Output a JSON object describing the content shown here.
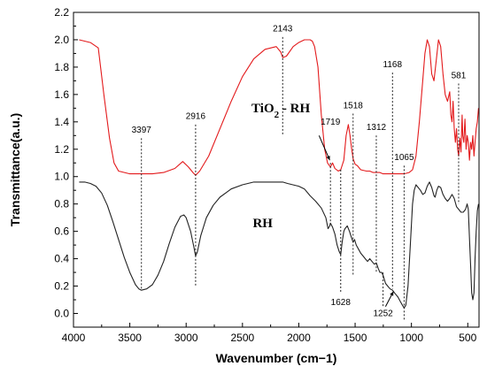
{
  "chart_data": {
    "type": "line",
    "xlabel": "Wavenumber",
    "xlabel_unit": "(cm−1)",
    "ylabel": "Transmittance(a.u.)",
    "xlim": [
      4000,
      400
    ],
    "ylim": [
      -0.1,
      2.2
    ],
    "x_ticks": [
      4000,
      3500,
      3000,
      2500,
      2000,
      1500,
      1000,
      500
    ],
    "y_ticks": [
      0.0,
      0.2,
      0.4,
      0.6,
      0.8,
      1.0,
      1.2,
      1.4,
      1.6,
      1.8,
      2.0,
      2.2
    ],
    "grid": false,
    "series": [
      {
        "name": "TiO2 - RH",
        "color": "#e31a1c",
        "points": [
          [
            3950,
            2.0
          ],
          [
            3850,
            1.98
          ],
          [
            3780,
            1.94
          ],
          [
            3730,
            1.6
          ],
          [
            3680,
            1.28
          ],
          [
            3640,
            1.1
          ],
          [
            3600,
            1.04
          ],
          [
            3500,
            1.02
          ],
          [
            3400,
            1.02
          ],
          [
            3300,
            1.02
          ],
          [
            3200,
            1.03
          ],
          [
            3100,
            1.06
          ],
          [
            3030,
            1.11
          ],
          [
            2980,
            1.07
          ],
          [
            2940,
            1.03
          ],
          [
            2916,
            1.01
          ],
          [
            2880,
            1.04
          ],
          [
            2800,
            1.15
          ],
          [
            2700,
            1.35
          ],
          [
            2600,
            1.55
          ],
          [
            2500,
            1.73
          ],
          [
            2400,
            1.86
          ],
          [
            2300,
            1.93
          ],
          [
            2200,
            1.95
          ],
          [
            2160,
            1.91
          ],
          [
            2143,
            1.87
          ],
          [
            2110,
            1.88
          ],
          [
            2050,
            1.95
          ],
          [
            2000,
            1.98
          ],
          [
            1950,
            2.0
          ],
          [
            1900,
            2.0
          ],
          [
            1880,
            1.99
          ],
          [
            1860,
            1.95
          ],
          [
            1830,
            1.8
          ],
          [
            1800,
            1.45
          ],
          [
            1770,
            1.2
          ],
          [
            1745,
            1.1
          ],
          [
            1719,
            1.07
          ],
          [
            1700,
            1.1
          ],
          [
            1680,
            1.06
          ],
          [
            1650,
            1.04
          ],
          [
            1628,
            1.05
          ],
          [
            1600,
            1.12
          ],
          [
            1580,
            1.3
          ],
          [
            1560,
            1.38
          ],
          [
            1545,
            1.3
          ],
          [
            1530,
            1.2
          ],
          [
            1518,
            1.13
          ],
          [
            1500,
            1.09
          ],
          [
            1480,
            1.08
          ],
          [
            1450,
            1.05
          ],
          [
            1400,
            1.04
          ],
          [
            1370,
            1.04
          ],
          [
            1340,
            1.03
          ],
          [
            1312,
            1.03
          ],
          [
            1280,
            1.03
          ],
          [
            1252,
            1.02
          ],
          [
            1200,
            1.02
          ],
          [
            1168,
            1.02
          ],
          [
            1120,
            1.02
          ],
          [
            1065,
            1.02
          ],
          [
            1020,
            1.03
          ],
          [
            990,
            1.05
          ],
          [
            960,
            1.15
          ],
          [
            930,
            1.4
          ],
          [
            900,
            1.7
          ],
          [
            880,
            1.9
          ],
          [
            860,
            2.0
          ],
          [
            840,
            1.95
          ],
          [
            820,
            1.75
          ],
          [
            800,
            1.7
          ],
          [
            780,
            1.85
          ],
          [
            760,
            2.0
          ],
          [
            740,
            1.95
          ],
          [
            720,
            1.75
          ],
          [
            700,
            1.6
          ],
          [
            680,
            1.55
          ],
          [
            660,
            1.62
          ],
          [
            650,
            1.45
          ],
          [
            640,
            1.4
          ],
          [
            630,
            1.55
          ],
          [
            620,
            1.35
          ],
          [
            610,
            1.25
          ],
          [
            600,
            1.35
          ],
          [
            590,
            1.2
          ],
          [
            581,
            1.15
          ],
          [
            570,
            1.28
          ],
          [
            560,
            1.18
          ],
          [
            550,
            1.45
          ],
          [
            545,
            1.3
          ],
          [
            535,
            1.25
          ],
          [
            525,
            1.42
          ],
          [
            515,
            1.2
          ],
          [
            505,
            1.3
          ],
          [
            495,
            1.25
          ],
          [
            485,
            1.12
          ],
          [
            475,
            1.25
          ],
          [
            465,
            1.2
          ],
          [
            455,
            1.3
          ],
          [
            445,
            1.15
          ],
          [
            435,
            1.25
          ],
          [
            425,
            1.35
          ],
          [
            415,
            1.4
          ],
          [
            405,
            1.5
          ]
        ]
      },
      {
        "name": "RH",
        "color": "#222222",
        "points": [
          [
            3950,
            0.96
          ],
          [
            3900,
            0.96
          ],
          [
            3850,
            0.95
          ],
          [
            3800,
            0.93
          ],
          [
            3750,
            0.88
          ],
          [
            3700,
            0.79
          ],
          [
            3650,
            0.67
          ],
          [
            3600,
            0.54
          ],
          [
            3550,
            0.41
          ],
          [
            3500,
            0.3
          ],
          [
            3450,
            0.21
          ],
          [
            3420,
            0.18
          ],
          [
            3397,
            0.17
          ],
          [
            3350,
            0.18
          ],
          [
            3300,
            0.21
          ],
          [
            3250,
            0.28
          ],
          [
            3200,
            0.38
          ],
          [
            3150,
            0.51
          ],
          [
            3100,
            0.63
          ],
          [
            3050,
            0.71
          ],
          [
            3020,
            0.72
          ],
          [
            3000,
            0.7
          ],
          [
            2960,
            0.6
          ],
          [
            2930,
            0.48
          ],
          [
            2916,
            0.42
          ],
          [
            2900,
            0.45
          ],
          [
            2870,
            0.57
          ],
          [
            2820,
            0.7
          ],
          [
            2760,
            0.79
          ],
          [
            2700,
            0.85
          ],
          [
            2600,
            0.91
          ],
          [
            2500,
            0.94
          ],
          [
            2400,
            0.96
          ],
          [
            2300,
            0.96
          ],
          [
            2200,
            0.96
          ],
          [
            2143,
            0.96
          ],
          [
            2100,
            0.95
          ],
          [
            2000,
            0.93
          ],
          [
            1950,
            0.91
          ],
          [
            1900,
            0.86
          ],
          [
            1850,
            0.82
          ],
          [
            1800,
            0.77
          ],
          [
            1760,
            0.7
          ],
          [
            1740,
            0.62
          ],
          [
            1725,
            0.64
          ],
          [
            1719,
            0.66
          ],
          [
            1700,
            0.63
          ],
          [
            1680,
            0.58
          ],
          [
            1660,
            0.5
          ],
          [
            1640,
            0.45
          ],
          [
            1628,
            0.43
          ],
          [
            1615,
            0.52
          ],
          [
            1600,
            0.6
          ],
          [
            1590,
            0.62
          ],
          [
            1570,
            0.64
          ],
          [
            1550,
            0.6
          ],
          [
            1530,
            0.55
          ],
          [
            1518,
            0.52
          ],
          [
            1505,
            0.54
          ],
          [
            1490,
            0.5
          ],
          [
            1470,
            0.47
          ],
          [
            1450,
            0.44
          ],
          [
            1430,
            0.42
          ],
          [
            1410,
            0.4
          ],
          [
            1390,
            0.38
          ],
          [
            1370,
            0.4
          ],
          [
            1350,
            0.38
          ],
          [
            1330,
            0.36
          ],
          [
            1312,
            0.37
          ],
          [
            1295,
            0.33
          ],
          [
            1280,
            0.3
          ],
          [
            1265,
            0.3
          ],
          [
            1252,
            0.28
          ],
          [
            1230,
            0.22
          ],
          [
            1210,
            0.2
          ],
          [
            1190,
            0.18
          ],
          [
            1168,
            0.17
          ],
          [
            1150,
            0.15
          ],
          [
            1120,
            0.12
          ],
          [
            1100,
            0.09
          ],
          [
            1080,
            0.06
          ],
          [
            1065,
            0.04
          ],
          [
            1050,
            0.06
          ],
          [
            1030,
            0.2
          ],
          [
            1010,
            0.5
          ],
          [
            990,
            0.8
          ],
          [
            975,
            0.9
          ],
          [
            960,
            0.94
          ],
          [
            940,
            0.92
          ],
          [
            920,
            0.9
          ],
          [
            900,
            0.87
          ],
          [
            880,
            0.88
          ],
          [
            860,
            0.93
          ],
          [
            840,
            0.96
          ],
          [
            820,
            0.92
          ],
          [
            800,
            0.86
          ],
          [
            790,
            0.85
          ],
          [
            775,
            0.9
          ],
          [
            760,
            0.93
          ],
          [
            740,
            0.92
          ],
          [
            720,
            0.87
          ],
          [
            700,
            0.84
          ],
          [
            680,
            0.82
          ],
          [
            660,
            0.84
          ],
          [
            640,
            0.87
          ],
          [
            620,
            0.84
          ],
          [
            600,
            0.78
          ],
          [
            580,
            0.76
          ],
          [
            560,
            0.74
          ],
          [
            540,
            0.74
          ],
          [
            520,
            0.76
          ],
          [
            505,
            0.8
          ],
          [
            495,
            0.76
          ],
          [
            485,
            0.55
          ],
          [
            475,
            0.35
          ],
          [
            465,
            0.15
          ],
          [
            455,
            0.1
          ],
          [
            445,
            0.15
          ],
          [
            435,
            0.4
          ],
          [
            425,
            0.6
          ],
          [
            415,
            0.75
          ],
          [
            405,
            0.8
          ]
        ]
      }
    ],
    "series_labels": [
      {
        "text": "TiO2 - RH",
        "x": 2160,
        "y": 1.47
      },
      {
        "text": "RH",
        "x": 2320,
        "y": 0.63
      }
    ],
    "peak_annotations": [
      {
        "label": "3397",
        "x": 3397,
        "label_y": 1.32,
        "line_top": 1.28,
        "line_bottom": 0.17
      },
      {
        "label": "2916",
        "x": 2916,
        "label_y": 1.42,
        "line_top": 1.38,
        "line_bottom": 0.2
      },
      {
        "label": "2143",
        "x": 2143,
        "label_y": 2.06,
        "line_top": 2.02,
        "line_bottom": 1.3
      },
      {
        "label": "1719",
        "x": 1719,
        "label_y": 1.38,
        "line_top": 1.1,
        "line_bottom": 0.64
      },
      {
        "label": "1628",
        "x": 1628,
        "label_y": 0.06,
        "line_top": 1.05,
        "line_bottom": 0.15
      },
      {
        "label": "1518",
        "x": 1518,
        "label_y": 1.5,
        "line_top": 1.46,
        "line_bottom": 0.28
      },
      {
        "label": "1312",
        "x": 1312,
        "label_y": 1.34,
        "line_top": 1.3,
        "line_bottom": 0.3
      },
      {
        "label": "1252",
        "x": 1252,
        "label_y": -0.02,
        "line_top": 0.3,
        "line_bottom": 0.05
      },
      {
        "label": "1168",
        "x": 1168,
        "label_y": 1.8,
        "line_top": 1.76,
        "line_bottom": 0.18
      },
      {
        "label": "1065",
        "x": 1065,
        "label_y": 1.12,
        "line_top": 1.08,
        "line_bottom": -0.05
      },
      {
        "label": "581",
        "x": 581,
        "label_y": 1.72,
        "line_top": 1.68,
        "line_bottom": 0.8
      }
    ]
  }
}
